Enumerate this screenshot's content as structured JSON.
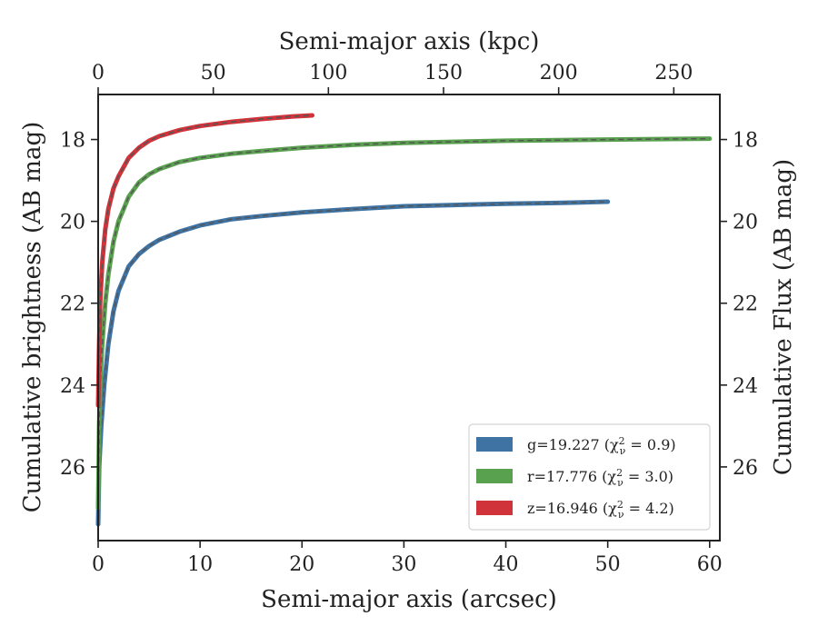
{
  "chart_data": {
    "type": "line",
    "xlabel": "Semi-major axis (arcsec)",
    "ylabel": "Cumulative brightness (AB mag)",
    "x2label": "Semi-major axis (kpc)",
    "y2label": "Cumulative Flux (AB mag)",
    "xlim": [
      0,
      61
    ],
    "ylim": [
      27.8,
      16.9
    ],
    "x2lim": [
      0,
      270
    ],
    "xticks": [
      0,
      10,
      20,
      30,
      40,
      50,
      60
    ],
    "yticks": [
      18,
      20,
      22,
      24,
      26
    ],
    "x2ticks": [
      0,
      50,
      100,
      150,
      200,
      250
    ],
    "grid": false,
    "legend_position": "lower-right",
    "series": [
      {
        "name": "g=19.227",
        "chi2": "0.9",
        "color": "#3f73a3",
        "x": [
          0.0,
          0.1,
          0.3,
          0.6,
          1.0,
          1.5,
          2.0,
          3.0,
          4.0,
          5.0,
          6.0,
          8.0,
          10.0,
          13.0,
          16.0,
          20.0,
          25.0,
          30.0,
          35.0,
          40.0,
          45.0,
          50.0
        ],
        "y": [
          27.4,
          26.0,
          25.0,
          24.0,
          23.0,
          22.2,
          21.7,
          21.1,
          20.8,
          20.6,
          20.45,
          20.25,
          20.1,
          19.95,
          19.87,
          19.78,
          19.7,
          19.63,
          19.6,
          19.57,
          19.55,
          19.52
        ]
      },
      {
        "name": "r=17.776",
        "chi2": "3.0",
        "color": "#59a14f",
        "x": [
          0.0,
          0.1,
          0.2,
          0.4,
          0.7,
          1.0,
          1.5,
          2.0,
          3.0,
          4.0,
          5.0,
          6.0,
          8.0,
          10.0,
          13.0,
          16.0,
          20.0,
          25.0,
          30.0,
          40.0,
          50.0,
          60.0
        ],
        "y": [
          27.0,
          25.0,
          24.0,
          23.0,
          22.0,
          21.3,
          20.5,
          20.0,
          19.4,
          19.05,
          18.85,
          18.72,
          18.55,
          18.45,
          18.35,
          18.28,
          18.2,
          18.13,
          18.08,
          18.03,
          18.0,
          17.98
        ]
      },
      {
        "name": "z=16.946",
        "chi2": "4.2",
        "color": "#d1333a",
        "x": [
          0.0,
          0.1,
          0.2,
          0.4,
          0.7,
          1.0,
          1.5,
          2.0,
          3.0,
          4.0,
          5.0,
          6.0,
          8.0,
          10.0,
          13.0,
          16.0,
          19.0,
          21.0
        ],
        "y": [
          24.5,
          23.0,
          22.0,
          21.0,
          20.2,
          19.7,
          19.2,
          18.9,
          18.45,
          18.2,
          18.03,
          17.92,
          17.77,
          17.67,
          17.57,
          17.5,
          17.44,
          17.41
        ]
      }
    ]
  }
}
